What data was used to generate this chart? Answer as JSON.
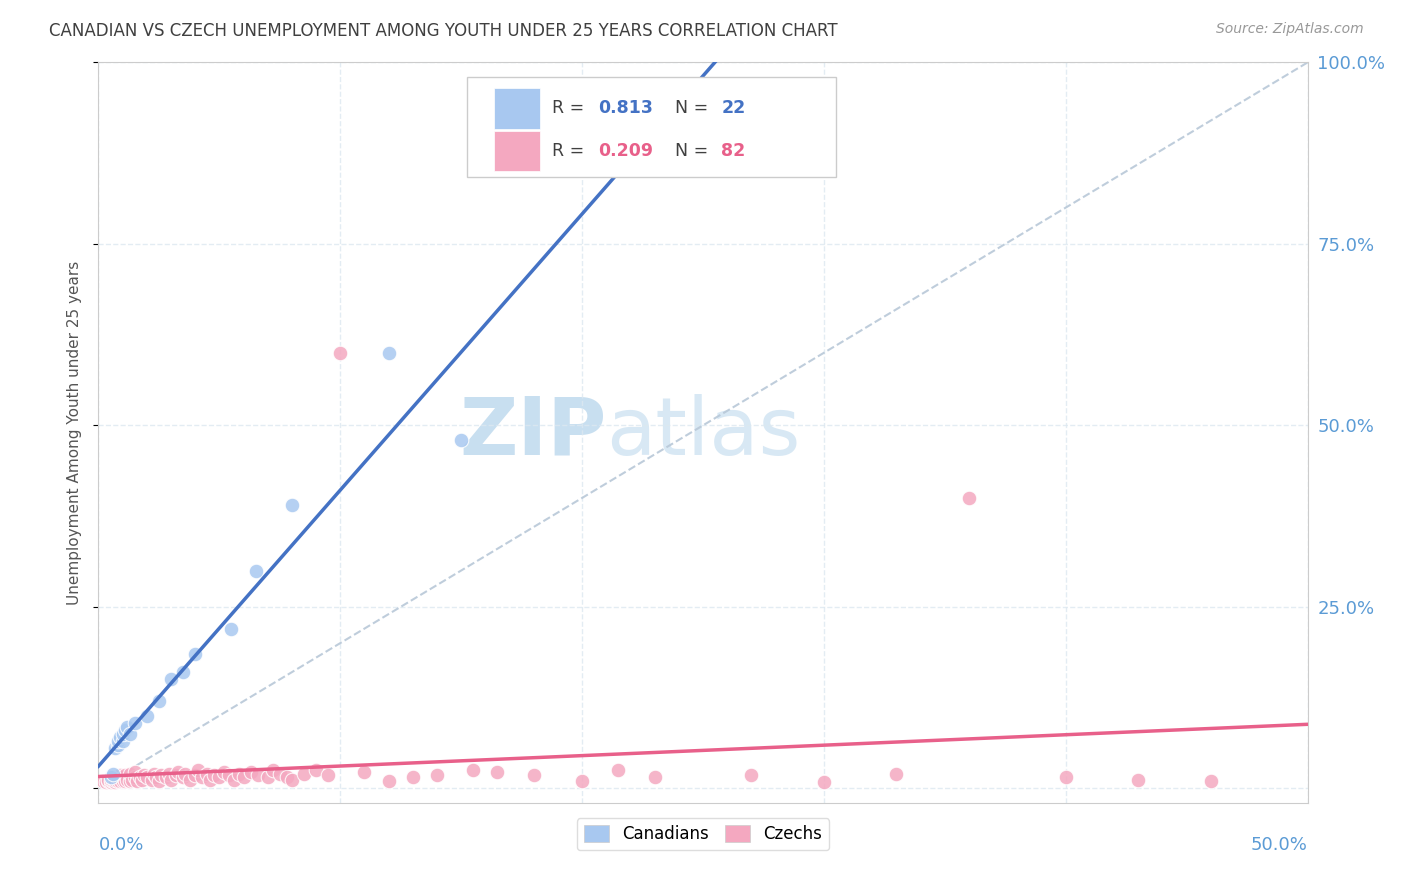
{
  "title": "CANADIAN VS CZECH UNEMPLOYMENT AMONG YOUTH UNDER 25 YEARS CORRELATION CHART",
  "source": "Source: ZipAtlas.com",
  "ylabel": "Unemployment Among Youth under 25 years",
  "right_yticks": [
    0.0,
    0.25,
    0.5,
    0.75,
    1.0
  ],
  "right_yticklabels": [
    "",
    "25.0%",
    "50.0%",
    "75.0%",
    "100.0%"
  ],
  "xmin": 0.0,
  "xmax": 0.5,
  "ymin": -0.02,
  "ymax": 1.0,
  "canadian_R": 0.813,
  "canadian_N": 22,
  "czech_R": 0.209,
  "czech_N": 82,
  "canadian_color": "#a8c8f0",
  "czech_color": "#f4a8c0",
  "canadian_line_color": "#4472c4",
  "czech_line_color": "#e8608a",
  "diagonal_color": "#b8c8d8",
  "watermark_zip": "ZIP",
  "watermark_atlas": "atlas",
  "watermark_color": "#ddeeff",
  "background_color": "#ffffff",
  "grid_color": "#dde8f0",
  "title_color": "#404040",
  "axis_label_color": "#5b9bd5",
  "canadians_x": [
    0.005,
    0.006,
    0.007,
    0.008,
    0.008,
    0.009,
    0.01,
    0.01,
    0.011,
    0.012,
    0.013,
    0.015,
    0.02,
    0.025,
    0.03,
    0.035,
    0.04,
    0.055,
    0.065,
    0.08,
    0.12,
    0.15
  ],
  "canadians_y": [
    0.015,
    0.02,
    0.055,
    0.06,
    0.065,
    0.07,
    0.065,
    0.075,
    0.08,
    0.085,
    0.075,
    0.09,
    0.1,
    0.12,
    0.15,
    0.16,
    0.185,
    0.22,
    0.3,
    0.39,
    0.6,
    0.48
  ],
  "czechs_x": [
    0.002,
    0.003,
    0.004,
    0.004,
    0.005,
    0.005,
    0.006,
    0.006,
    0.007,
    0.007,
    0.008,
    0.008,
    0.009,
    0.009,
    0.01,
    0.01,
    0.011,
    0.011,
    0.012,
    0.013,
    0.013,
    0.014,
    0.015,
    0.015,
    0.016,
    0.017,
    0.018,
    0.019,
    0.02,
    0.022,
    0.023,
    0.024,
    0.025,
    0.026,
    0.028,
    0.029,
    0.03,
    0.032,
    0.033,
    0.035,
    0.036,
    0.038,
    0.04,
    0.041,
    0.043,
    0.045,
    0.046,
    0.048,
    0.05,
    0.052,
    0.054,
    0.056,
    0.058,
    0.06,
    0.063,
    0.066,
    0.07,
    0.072,
    0.075,
    0.078,
    0.08,
    0.085,
    0.09,
    0.095,
    0.1,
    0.11,
    0.12,
    0.13,
    0.14,
    0.155,
    0.165,
    0.18,
    0.2,
    0.215,
    0.23,
    0.27,
    0.3,
    0.33,
    0.36,
    0.4,
    0.43,
    0.46
  ],
  "czechs_y": [
    0.01,
    0.008,
    0.01,
    0.012,
    0.008,
    0.012,
    0.01,
    0.015,
    0.008,
    0.012,
    0.01,
    0.015,
    0.01,
    0.018,
    0.01,
    0.015,
    0.01,
    0.018,
    0.012,
    0.01,
    0.02,
    0.012,
    0.015,
    0.022,
    0.01,
    0.015,
    0.012,
    0.018,
    0.015,
    0.012,
    0.02,
    0.015,
    0.01,
    0.018,
    0.015,
    0.02,
    0.012,
    0.018,
    0.022,
    0.015,
    0.02,
    0.012,
    0.018,
    0.025,
    0.015,
    0.02,
    0.012,
    0.018,
    0.015,
    0.022,
    0.018,
    0.012,
    0.02,
    0.015,
    0.022,
    0.018,
    0.015,
    0.025,
    0.02,
    0.015,
    0.012,
    0.02,
    0.025,
    0.018,
    0.6,
    0.022,
    0.01,
    0.015,
    0.018,
    0.025,
    0.022,
    0.018,
    0.01,
    0.025,
    0.015,
    0.018,
    0.008,
    0.02,
    0.4,
    0.015,
    0.012,
    0.01
  ]
}
